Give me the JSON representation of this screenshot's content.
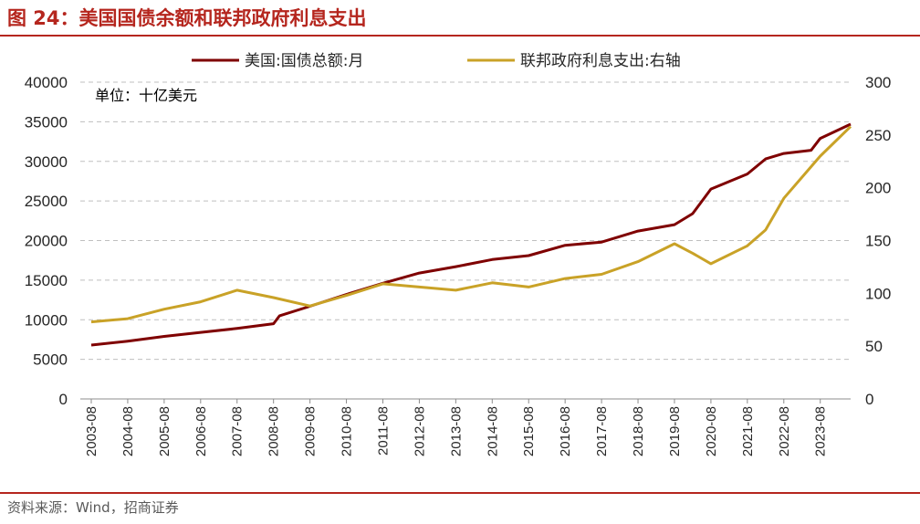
{
  "title": "图 24：美国国债余额和联邦政府利息支出",
  "source": "资料来源：Wind，招商证券",
  "colors": {
    "accent": "#b5261e",
    "debt": "#7f0000",
    "interest": "#c9a227",
    "grid": "#bfbfbf"
  },
  "chart_data": {
    "type": "line",
    "annotation": "单位：十亿美元",
    "legend_position": "top",
    "grid": true,
    "x_labels": [
      "2003-08",
      "2004-08",
      "2005-08",
      "2006-08",
      "2007-08",
      "2008-08",
      "2009-08",
      "2010-08",
      "2011-08",
      "2012-08",
      "2013-08",
      "2014-08",
      "2015-08",
      "2016-08",
      "2017-08",
      "2018-08",
      "2019-08",
      "2020-08",
      "2021-08",
      "2022-08",
      "2023-08"
    ],
    "y_left": {
      "min": 0,
      "max": 40000,
      "ticks": [
        0,
        5000,
        10000,
        15000,
        20000,
        25000,
        30000,
        35000,
        40000
      ]
    },
    "y_right": {
      "min": 0,
      "max": 300,
      "ticks": [
        0,
        50,
        100,
        150,
        200,
        250,
        300
      ]
    },
    "series": [
      {
        "name": "美国:国债总额:月",
        "axis": "left",
        "color": "#7f0000",
        "points": [
          [
            "2003-08",
            6800
          ],
          [
            "2004-08",
            7300
          ],
          [
            "2005-08",
            7900
          ],
          [
            "2006-08",
            8400
          ],
          [
            "2007-08",
            8900
          ],
          [
            "2008-08",
            9500
          ],
          [
            "2008-10",
            10500
          ],
          [
            "2009-08",
            11700
          ],
          [
            "2010-08",
            13200
          ],
          [
            "2011-08",
            14600
          ],
          [
            "2012-08",
            15900
          ],
          [
            "2013-08",
            16700
          ],
          [
            "2014-08",
            17600
          ],
          [
            "2015-08",
            18100
          ],
          [
            "2016-08",
            19400
          ],
          [
            "2017-08",
            19800
          ],
          [
            "2018-08",
            21200
          ],
          [
            "2019-08",
            22000
          ],
          [
            "2020-02",
            23400
          ],
          [
            "2020-08",
            26500
          ],
          [
            "2021-08",
            28400
          ],
          [
            "2022-02",
            30300
          ],
          [
            "2022-08",
            31000
          ],
          [
            "2023-05",
            31400
          ],
          [
            "2023-08",
            32900
          ],
          [
            "2024-06",
            34700
          ]
        ]
      },
      {
        "name": "联邦政府利息支出:右轴",
        "axis": "right",
        "color": "#c9a227",
        "points": [
          [
            "2003-08",
            73
          ],
          [
            "2004-08",
            76
          ],
          [
            "2005-08",
            85
          ],
          [
            "2006-08",
            92
          ],
          [
            "2007-08",
            103
          ],
          [
            "2008-08",
            96
          ],
          [
            "2009-08",
            88
          ],
          [
            "2010-08",
            98
          ],
          [
            "2011-08",
            109
          ],
          [
            "2012-08",
            106
          ],
          [
            "2013-08",
            103
          ],
          [
            "2014-08",
            110
          ],
          [
            "2015-08",
            106
          ],
          [
            "2016-08",
            114
          ],
          [
            "2017-08",
            118
          ],
          [
            "2018-08",
            130
          ],
          [
            "2019-08",
            147
          ],
          [
            "2020-02",
            138
          ],
          [
            "2020-08",
            128
          ],
          [
            "2021-08",
            145
          ],
          [
            "2022-02",
            160
          ],
          [
            "2022-08",
            190
          ],
          [
            "2023-08",
            230
          ],
          [
            "2024-06",
            258
          ]
        ]
      }
    ]
  }
}
